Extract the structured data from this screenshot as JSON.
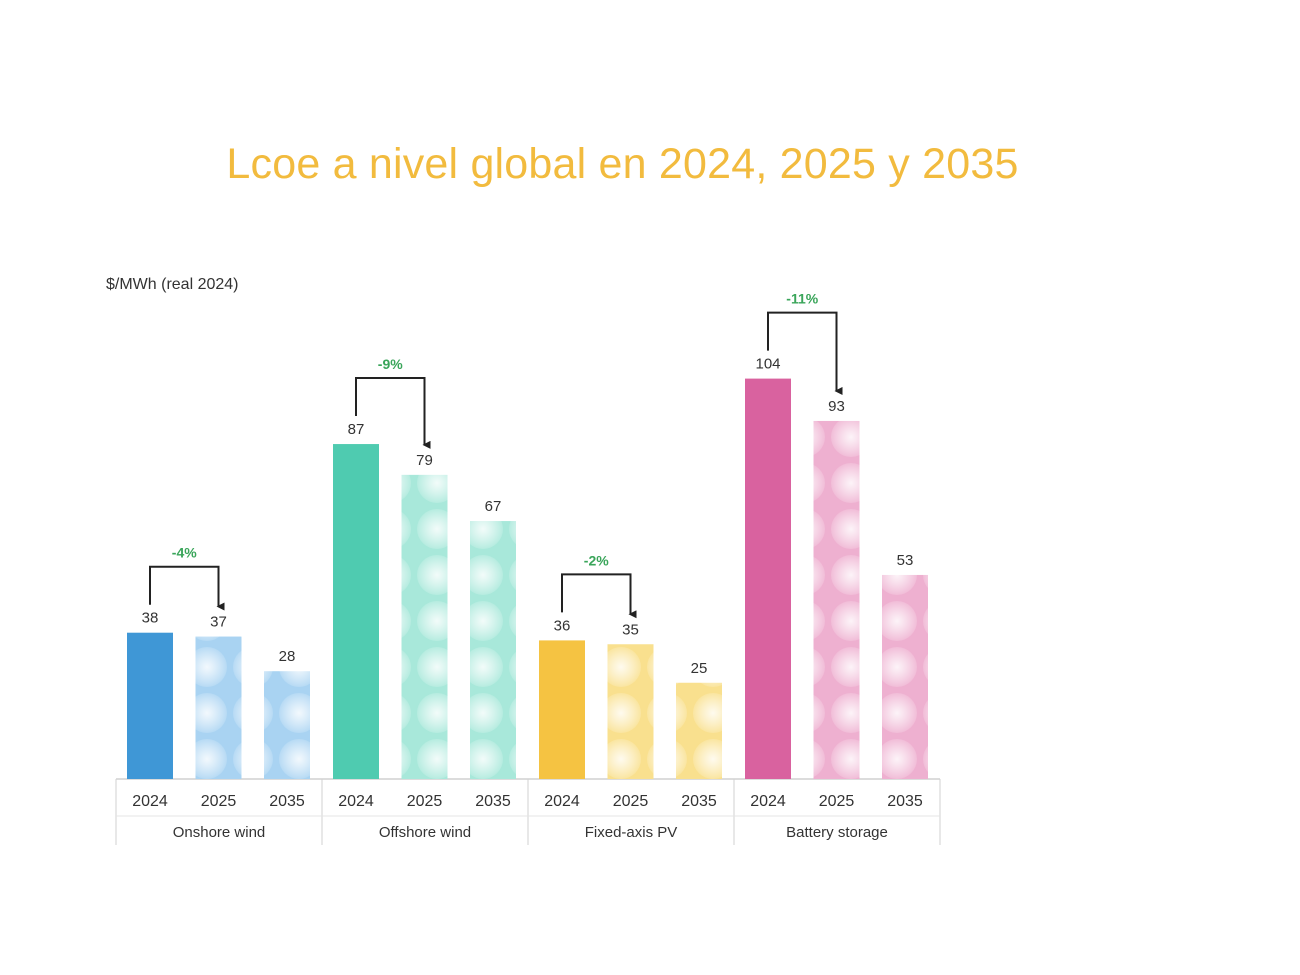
{
  "slide": {
    "title": "Lcoe a nivel global en 2024, 2025 y 2035"
  },
  "chart_data": {
    "type": "bar",
    "title": "Lcoe a nivel global en 2024, 2025 y 2035",
    "ylabel": "$/MWh (real 2024)",
    "xlabel": "",
    "ylim": [
      0,
      110
    ],
    "grid": false,
    "years": [
      "2024",
      "2025",
      "2035"
    ],
    "groups": [
      {
        "name": "Onshore wind",
        "color": "#3f97d6",
        "light": "#a9d3f2",
        "values": [
          38,
          37,
          28
        ],
        "change": "-4%"
      },
      {
        "name": "Offshore wind",
        "color": "#4fcbb0",
        "light": "#a8e8da",
        "values": [
          87,
          79,
          67
        ],
        "change": "-9%"
      },
      {
        "name": "Fixed-axis PV",
        "color": "#f5c342",
        "light": "#f9e08e",
        "values": [
          36,
          35,
          25
        ],
        "change": "-2%"
      },
      {
        "name": "Battery storage",
        "color": "#d9629f",
        "light": "#eeb0d0",
        "values": [
          104,
          93,
          53
        ],
        "change": "-11%"
      }
    ]
  }
}
